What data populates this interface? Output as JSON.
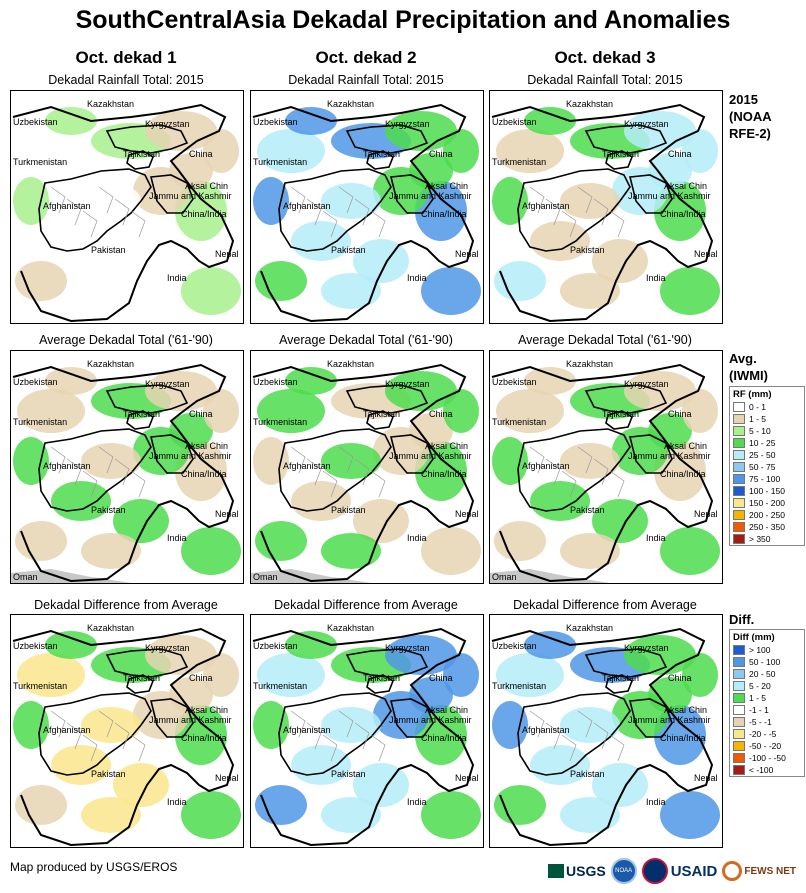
{
  "title": "SouthCentralAsia Dekadal Precipitation and Anomalies",
  "columns": [
    {
      "label": "Oct. dekad 1"
    },
    {
      "label": "Oct. dekad 2"
    },
    {
      "label": "Oct. dekad 3"
    }
  ],
  "rows": [
    {
      "panel_title": "Dekadal Rainfall Total: 2015",
      "side_label_lines": [
        "2015",
        "(NOAA",
        "RFE-2)"
      ],
      "maps": [
        {
          "fill_classes": [
            "white",
            "lightgreen",
            "tan"
          ]
        },
        {
          "fill_classes": [
            "green",
            "lightblue",
            "blue"
          ]
        },
        {
          "fill_classes": [
            "green",
            "lightblue",
            "tan"
          ]
        }
      ]
    },
    {
      "panel_title": "Average Dekadal Total ('61-'90)",
      "side_label_lines": [
        "Avg.",
        "(IWMI)"
      ],
      "maps": [
        {
          "fill_classes": [
            "tan",
            "green"
          ]
        },
        {
          "fill_classes": [
            "tan",
            "green"
          ]
        },
        {
          "fill_classes": [
            "tan",
            "green"
          ]
        }
      ]
    },
    {
      "panel_title": "Dekadal Difference from Average",
      "side_label_lines": [
        "Diff."
      ],
      "maps": [
        {
          "fill_classes": [
            "yellow",
            "green",
            "tan"
          ]
        },
        {
          "fill_classes": [
            "blue",
            "lightblue",
            "green"
          ]
        },
        {
          "fill_classes": [
            "blue",
            "green",
            "lightblue"
          ]
        }
      ]
    }
  ],
  "map_labels": {
    "kazakhstan": "Kazakhstan",
    "uzbekistan": "Uzbekistan",
    "kyrgyzstan": "Kyrgyzstan",
    "turkmenistan": "Turkmenistan",
    "tajikistan": "Tajikistan",
    "china": "China",
    "aksai_chin": "Aksai Chin",
    "jammu_kashmir": "Jammu and Kashmir",
    "china_india": "China/India",
    "afghanistan": "Afghanistan",
    "pakistan": "Pakistan",
    "nepal": "Nepal",
    "india": "India",
    "oman": "Oman"
  },
  "legend_rf": {
    "title": "RF (mm)",
    "items": [
      {
        "label": "0 - 1",
        "color": "#ffffff"
      },
      {
        "label": "1 - 5",
        "color": "#e6d3b3"
      },
      {
        "label": "5 - 10",
        "color": "#a8f08c"
      },
      {
        "label": "10 - 25",
        "color": "#4ddc4d"
      },
      {
        "label": "25 - 50",
        "color": "#b4ecf8"
      },
      {
        "label": "50 - 75",
        "color": "#8cc8f0"
      },
      {
        "label": "75 - 100",
        "color": "#5096e6"
      },
      {
        "label": "100 - 150",
        "color": "#1e5ad2"
      },
      {
        "label": "150 - 200",
        "color": "#fae68c"
      },
      {
        "label": "200 - 250",
        "color": "#f5b400"
      },
      {
        "label": "250 - 350",
        "color": "#f05a00"
      },
      {
        "label": "> 350",
        "color": "#a01e14"
      }
    ]
  },
  "legend_diff": {
    "title": "Diff (mm)",
    "items": [
      {
        "label": "> 100",
        "color": "#1e5ad2"
      },
      {
        "label": "50 - 100",
        "color": "#5096e6"
      },
      {
        "label": "20 - 50",
        "color": "#8cc8f0"
      },
      {
        "label": "5 - 20",
        "color": "#b4ecf8"
      },
      {
        "label": "1 - 5",
        "color": "#4ddc4d"
      },
      {
        "label": "-1 - 1",
        "color": "#ffffff"
      },
      {
        "label": "-5 - -1",
        "color": "#e6d3b3"
      },
      {
        "label": "-20 - -5",
        "color": "#fae68c"
      },
      {
        "label": "-50 - -20",
        "color": "#f5b400"
      },
      {
        "label": "-100 - -50",
        "color": "#f05a00"
      },
      {
        "label": "< -100",
        "color": "#a01e14"
      }
    ]
  },
  "footer": {
    "credit": "Map produced by USGS/EROS",
    "logos": {
      "usgs": "USGS",
      "noaa": "NOAA",
      "usaid": "USAID",
      "fews": "FEWS NET"
    }
  }
}
